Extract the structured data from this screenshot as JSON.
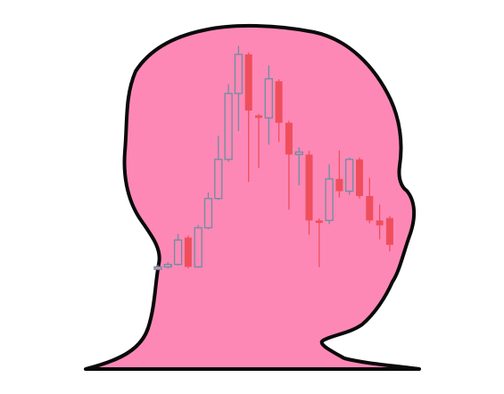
{
  "colors": {
    "background": "#ffffff",
    "head_fill": "#fd88b6",
    "head_outline": "#0a0a0a",
    "candle_up": "#6a8fa0",
    "candle_down": "#ef4f5c"
  },
  "chart_data": {
    "type": "candlestick",
    "title": "",
    "xlabel": "",
    "ylabel": "",
    "ylim": [
      0,
      100
    ],
    "grid": false,
    "candles": [
      {
        "dir": "up",
        "open": 12.0,
        "close": 13.0,
        "high": 13.8,
        "low": 11.6
      },
      {
        "dir": "up",
        "open": 13.0,
        "close": 14.0,
        "high": 15.0,
        "low": 12.3
      },
      {
        "dir": "up",
        "open": 14.0,
        "close": 24.0,
        "high": 26.5,
        "low": 13.6
      },
      {
        "dir": "down",
        "open": 25.0,
        "close": 13.0,
        "high": 25.8,
        "low": 12.4
      },
      {
        "dir": "up",
        "open": 13.0,
        "close": 29.0,
        "high": 30.2,
        "low": 12.6
      },
      {
        "dir": "up",
        "open": 29.0,
        "close": 41.0,
        "high": 43.5,
        "low": 28.4
      },
      {
        "dir": "up",
        "open": 41.0,
        "close": 57.0,
        "high": 66.7,
        "low": 40.3
      },
      {
        "dir": "up",
        "open": 57.0,
        "close": 84.0,
        "high": 87.8,
        "low": 56.0
      },
      {
        "dir": "up",
        "open": 84.0,
        "close": 100.0,
        "high": 103.5,
        "low": 68.6
      },
      {
        "dir": "down",
        "open": 100.0,
        "close": 77.0,
        "high": 100.8,
        "low": 47.8
      },
      {
        "dir": "down",
        "open": 75.0,
        "close": 74.0,
        "high": 75.6,
        "low": 53.4
      },
      {
        "dir": "up",
        "open": 74.0,
        "close": 90.0,
        "high": 95.5,
        "low": 63.0
      },
      {
        "dir": "down",
        "open": 89.0,
        "close": 72.0,
        "high": 89.8,
        "low": 64.2
      },
      {
        "dir": "down",
        "open": 72.0,
        "close": 59.0,
        "high": 72.8,
        "low": 36.4
      },
      {
        "dir": "up",
        "open": 59.0,
        "close": 60.0,
        "high": 62.0,
        "low": 46.4
      },
      {
        "dir": "down",
        "open": 59.0,
        "close": 32.0,
        "high": 60.5,
        "low": 26.2
      },
      {
        "dir": "down",
        "open": 32.0,
        "close": 31.0,
        "high": 32.8,
        "low": 12.9
      },
      {
        "dir": "up",
        "open": 32.0,
        "close": 49.0,
        "high": 55.0,
        "low": 30.5
      },
      {
        "dir": "down",
        "open": 49.0,
        "close": 44.0,
        "high": 60.7,
        "low": 41.4
      },
      {
        "dir": "up",
        "open": 44.0,
        "close": 57.0,
        "high": 57.8,
        "low": 42.5
      },
      {
        "dir": "down",
        "open": 57.0,
        "close": 42.0,
        "high": 57.8,
        "low": 41.0
      },
      {
        "dir": "down",
        "open": 42.0,
        "close": 32.0,
        "high": 49.5,
        "low": 30.8
      },
      {
        "dir": "down",
        "open": 32.0,
        "close": 30.0,
        "high": 38.5,
        "low": 24.3
      },
      {
        "dir": "down",
        "open": 33.0,
        "close": 22.0,
        "high": 33.8,
        "low": 19.3
      }
    ]
  }
}
